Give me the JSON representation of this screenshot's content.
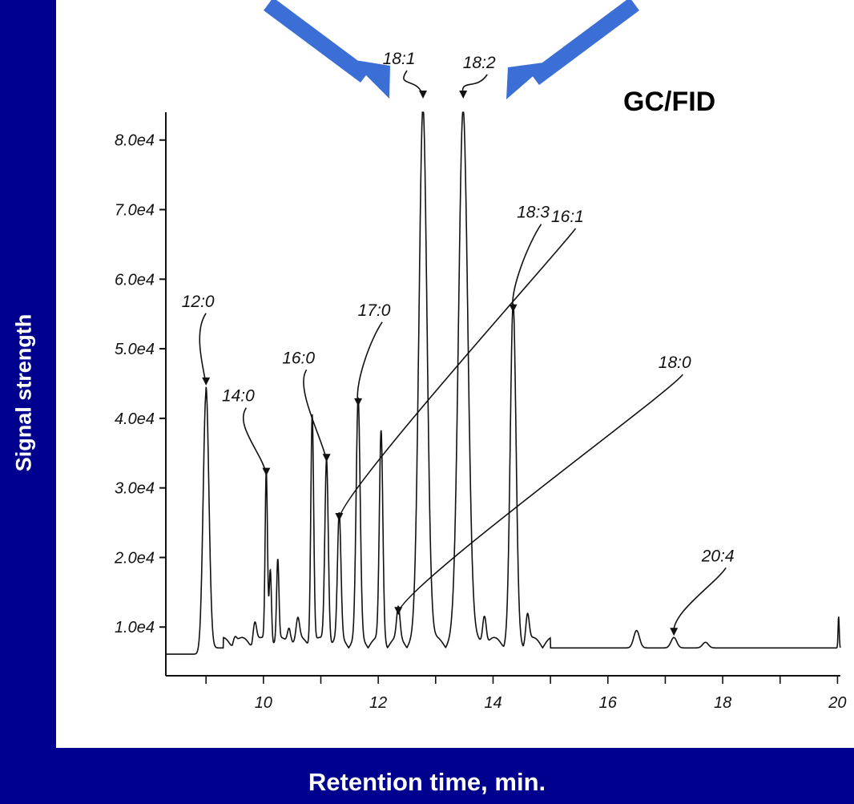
{
  "chart_data": {
    "type": "line",
    "title": "",
    "method_label": "GC/FID",
    "xlabel": "Retention time, min.",
    "ylabel": "Signal strength",
    "xlim": [
      8.3,
      20.05
    ],
    "ylim": [
      3000,
      84000
    ],
    "x_ticks": [
      "10",
      "12",
      "14",
      "16",
      "18",
      "20"
    ],
    "y_ticks": [
      "1.0e4",
      "2.0e4",
      "3.0e4",
      "4.0e4",
      "5.0e4",
      "6.0e4",
      "7.0e4",
      "8.0e4"
    ],
    "baseline": 7000,
    "peaks": [
      {
        "rt": 9.0,
        "height": 44500,
        "width": 0.05,
        "label": "12:0"
      },
      {
        "rt": 9.5,
        "height": 8000,
        "width": 0.03,
        "label": ""
      },
      {
        "rt": 9.85,
        "height": 10000,
        "width": 0.03,
        "label": ""
      },
      {
        "rt": 10.05,
        "height": 31500,
        "width": 0.02,
        "label": "14:0"
      },
      {
        "rt": 10.12,
        "height": 18000,
        "width": 0.02,
        "label": ""
      },
      {
        "rt": 10.25,
        "height": 18500,
        "width": 0.02,
        "label": ""
      },
      {
        "rt": 10.45,
        "height": 9500,
        "width": 0.03,
        "label": ""
      },
      {
        "rt": 10.6,
        "height": 10000,
        "width": 0.03,
        "label": ""
      },
      {
        "rt": 10.85,
        "height": 40000,
        "width": 0.025,
        "label": ""
      },
      {
        "rt": 11.1,
        "height": 33500,
        "width": 0.03,
        "label": "16:0"
      },
      {
        "rt": 11.32,
        "height": 25000,
        "width": 0.03,
        "label": "16:1"
      },
      {
        "rt": 11.65,
        "height": 41500,
        "width": 0.035,
        "label": "17:0"
      },
      {
        "rt": 12.05,
        "height": 37000,
        "width": 0.03,
        "label": ""
      },
      {
        "rt": 12.35,
        "height": 11500,
        "width": 0.03,
        "label": "18:0"
      },
      {
        "rt": 12.78,
        "height": 84000,
        "width": 0.07,
        "label": "18:1"
      },
      {
        "rt": 13.48,
        "height": 84000,
        "width": 0.08,
        "label": "18:2"
      },
      {
        "rt": 13.85,
        "height": 11500,
        "width": 0.03,
        "label": ""
      },
      {
        "rt": 14.35,
        "height": 55000,
        "width": 0.05,
        "label": "18:3"
      },
      {
        "rt": 14.6,
        "height": 11000,
        "width": 0.03,
        "label": ""
      },
      {
        "rt": 16.5,
        "height": 9500,
        "width": 0.05,
        "label": ""
      },
      {
        "rt": 17.15,
        "height": 8500,
        "width": 0.05,
        "label": "20:4"
      },
      {
        "rt": 17.7,
        "height": 7800,
        "width": 0.05,
        "label": ""
      },
      {
        "rt": 20.02,
        "height": 11500,
        "width": 0.01,
        "label": ""
      }
    ],
    "peak_labels": [
      "18:1",
      "18:2",
      "12:0",
      "14:0",
      "16:0",
      "17:0",
      "18:3",
      "16:1",
      "18:0",
      "20:4"
    ],
    "grid": false,
    "legend": "none",
    "colors": {
      "background": "#00008e",
      "panel": "#ffffff",
      "trace": "#111111",
      "arrows": "#3b6fd6"
    }
  }
}
